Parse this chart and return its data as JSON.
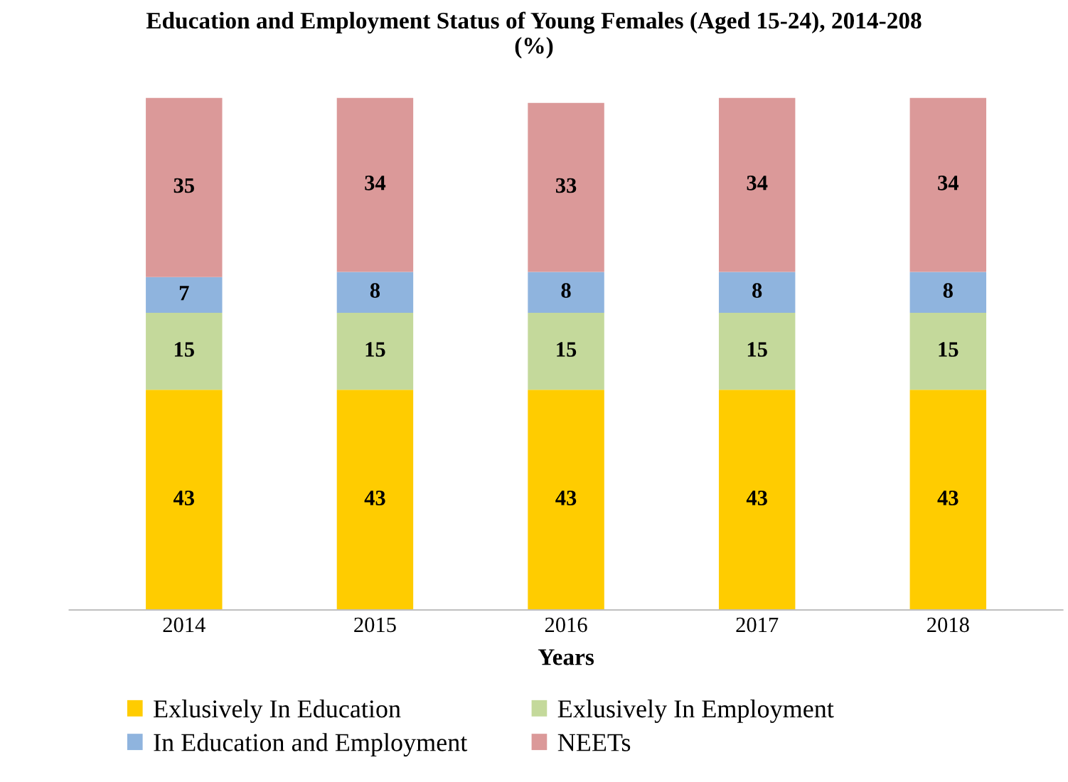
{
  "chart_data": {
    "type": "bar",
    "stacked": true,
    "title": "Education and Employment Status of Young Females (Aged 15-24), 2014-208\n(%)",
    "xlabel": "Years",
    "categories": [
      "2014",
      "2015",
      "2016",
      "2017",
      "2018"
    ],
    "series": [
      {
        "name": "Exlusively In Education",
        "color": "#ffcc00",
        "values": [
          43,
          43,
          43,
          43,
          43
        ]
      },
      {
        "name": "Exlusively In Employment",
        "color": "#c4d99b",
        "values": [
          15,
          15,
          15,
          15,
          15
        ]
      },
      {
        "name": "In Education and Employment",
        "color": "#8fb4de",
        "values": [
          7,
          8,
          8,
          8,
          8
        ]
      },
      {
        "name": "NEETs",
        "color": "#db9999",
        "values": [
          35,
          34,
          33,
          34,
          34
        ]
      }
    ],
    "ylim": [
      0,
      100
    ],
    "tick_labels": "x",
    "data_labels": true,
    "grid": false,
    "legend": "bottom"
  }
}
